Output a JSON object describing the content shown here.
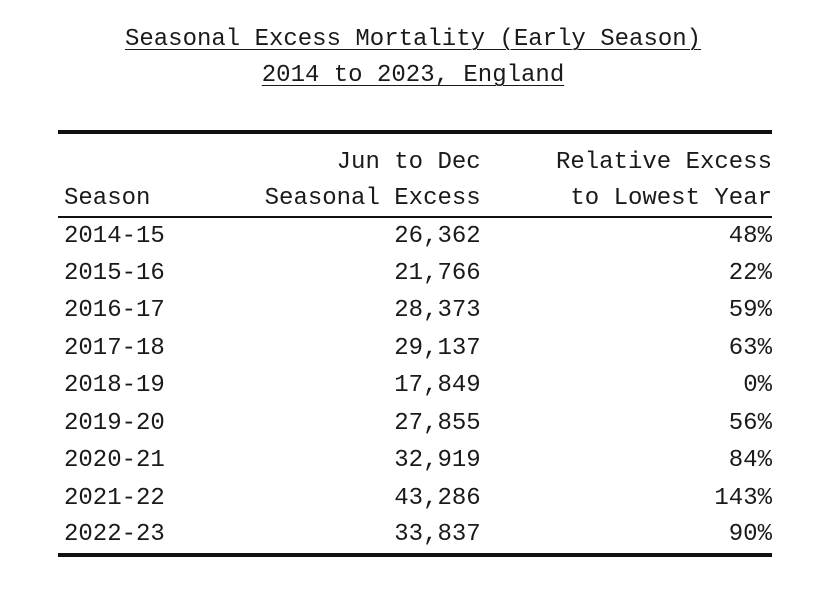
{
  "title": {
    "line1": "Seasonal Excess Mortality (Early Season)",
    "line2": "2014 to 2023, England"
  },
  "table": {
    "headers": {
      "season": "Season",
      "excess_top": "Jun to Dec",
      "excess_bottom": "Seasonal Excess",
      "relative_top": "Relative Excess",
      "relative_bottom": "to Lowest Year"
    },
    "rows": [
      {
        "season": "2014-15",
        "excess": "26,362",
        "relative": "48%"
      },
      {
        "season": "2015-16",
        "excess": "21,766",
        "relative": "22%"
      },
      {
        "season": "2016-17",
        "excess": "28,373",
        "relative": "59%"
      },
      {
        "season": "2017-18",
        "excess": "29,137",
        "relative": "63%"
      },
      {
        "season": "2018-19",
        "excess": "17,849",
        "relative": "0%"
      },
      {
        "season": "2019-20",
        "excess": "27,855",
        "relative": "56%"
      },
      {
        "season": "2020-21",
        "excess": "32,919",
        "relative": "84%"
      },
      {
        "season": "2021-22",
        "excess": "43,286",
        "relative": "143%"
      },
      {
        "season": "2022-23",
        "excess": "33,837",
        "relative": "90%"
      }
    ]
  }
}
